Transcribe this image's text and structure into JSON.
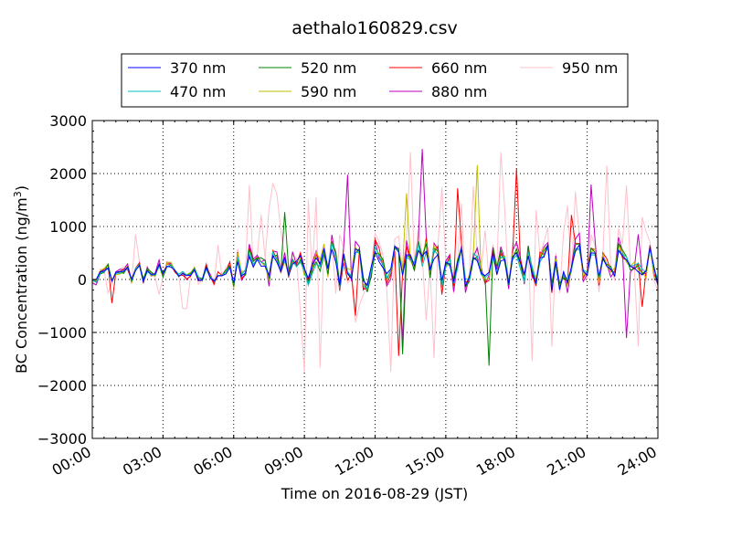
{
  "chart_data": {
    "type": "line",
    "title": "aethalo160829.csv",
    "xlabel": "Time on 2016-08-29 (JST)",
    "ylabel": "BC Concentration (ng/m",
    "ylabel_sup": "3",
    "ylabel_close": ")",
    "xlim_hours": [
      0,
      24
    ],
    "ylim": [
      -3000,
      3000
    ],
    "xticks": [
      {
        "hour": 0,
        "label": "00:00"
      },
      {
        "hour": 3,
        "label": "03:00"
      },
      {
        "hour": 6,
        "label": "06:00"
      },
      {
        "hour": 9,
        "label": "09:00"
      },
      {
        "hour": 12,
        "label": "12:00"
      },
      {
        "hour": 15,
        "label": "15:00"
      },
      {
        "hour": 18,
        "label": "18:00"
      },
      {
        "hour": 21,
        "label": "21:00"
      },
      {
        "hour": 24,
        "label": "24:00"
      }
    ],
    "yticks": [
      {
        "value": 3000,
        "label": "3000"
      },
      {
        "value": 2000,
        "label": "2000"
      },
      {
        "value": 1000,
        "label": "1000"
      },
      {
        "value": 0,
        "label": "0"
      },
      {
        "value": -1000,
        "label": "−1000"
      },
      {
        "value": -2000,
        "label": "−2000"
      },
      {
        "value": -3000,
        "label": "−3000"
      }
    ],
    "grid": true,
    "legend_placement": "top-center",
    "sampling_minutes": 10,
    "series": [
      {
        "name": "370 nm",
        "color": "#0000ff",
        "base": 230,
        "amp": 420,
        "spike": 0
      },
      {
        "name": "470 nm",
        "color": "#00bfbf",
        "base": 235,
        "amp": 430,
        "spike": 0
      },
      {
        "name": "520 nm",
        "color": "#008000",
        "base": 240,
        "amp": 470,
        "spike": 0.03
      },
      {
        "name": "590 nm",
        "color": "#bfbf00",
        "base": 245,
        "amp": 490,
        "spike": 0.04
      },
      {
        "name": "660 nm",
        "color": "#ff0000",
        "base": 250,
        "amp": 520,
        "spike": 0.05
      },
      {
        "name": "880 nm",
        "color": "#bf00bf",
        "base": 255,
        "amp": 600,
        "spike": 0.08
      },
      {
        "name": "950 nm",
        "color": "#ffc0cb",
        "base": 260,
        "amp": 700,
        "spike": 0.35
      }
    ]
  }
}
